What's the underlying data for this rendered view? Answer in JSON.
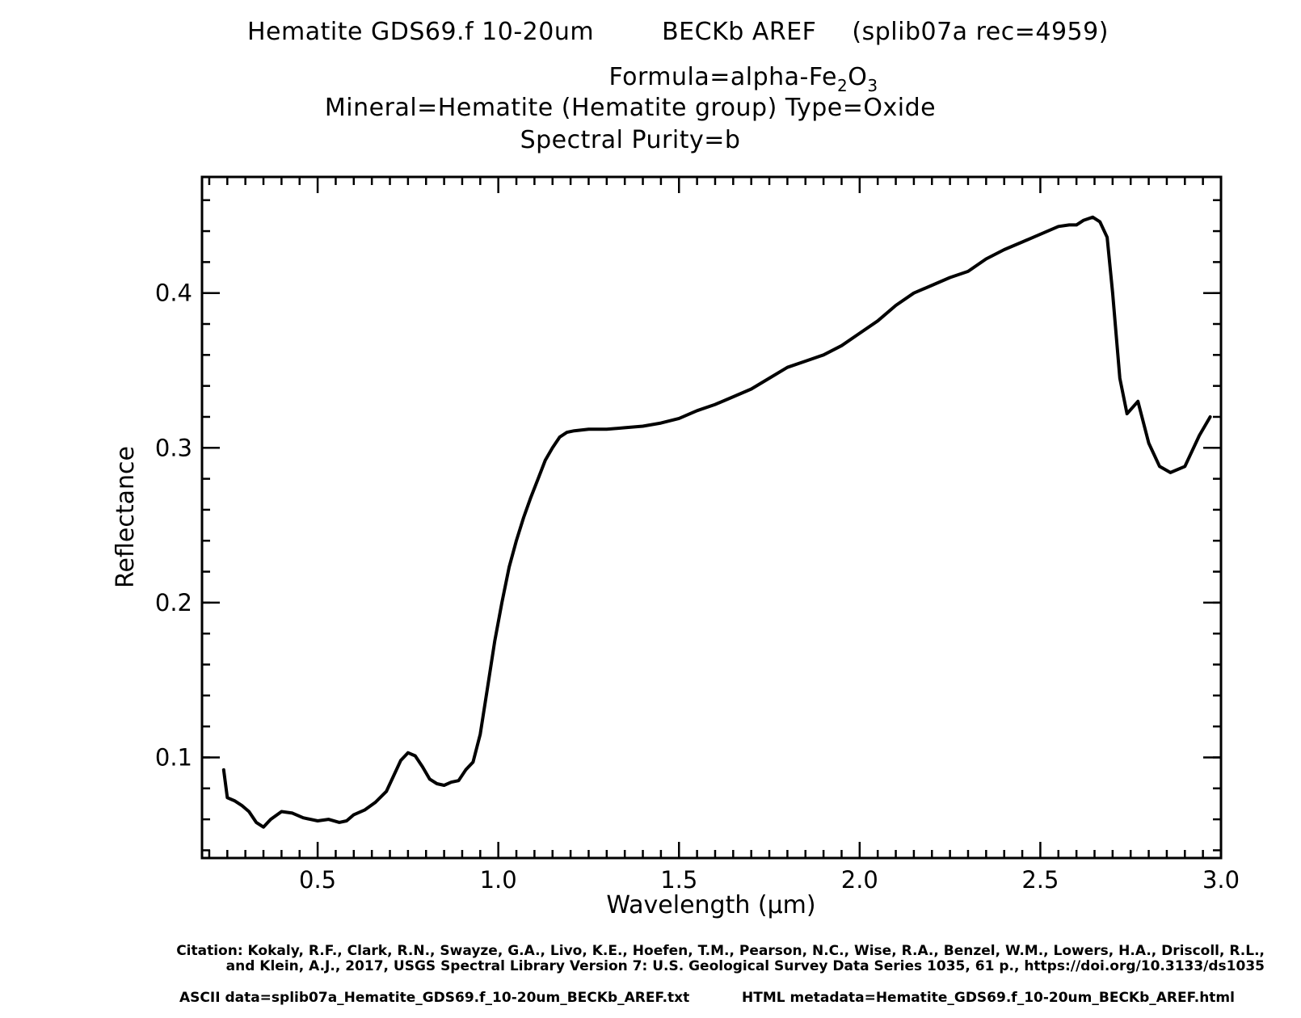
{
  "header": {
    "name": "Hematite GDS69.f 10-20um",
    "measurement": "BECKb AREF",
    "record": "(splib07a rec=4959)",
    "formula_prefix": "Formula=alpha-Fe",
    "formula_sub1": "2",
    "formula_mid": "O",
    "formula_sub2": "3",
    "mineral": "Mineral=Hematite (Hematite group)  Type=Oxide",
    "purity": "Spectral Purity=b"
  },
  "footer": {
    "citation_line1": "Citation: Kokaly, R.F., Clark, R.N., Swayze, G.A., Livo, K.E., Hoefen, T.M., Pearson, N.C., Wise, R.A., Benzel, W.M., Lowers, H.A., Driscoll, R.L.,",
    "citation_line2": "and Klein, A.J., 2017, USGS Spectral Library Version 7: U.S. Geological Survey Data Series 1035, 61 p., https://doi.org/10.3133/ds1035",
    "ascii_data": "ASCII data=splib07a_Hematite_GDS69.f_10-20um_BECKb_AREF.txt",
    "html_metadata": "HTML metadata=Hematite_GDS69.f_10-20um_BECKb_AREF.html"
  },
  "chart_data": {
    "type": "line",
    "title": "Hematite GDS69.f 10-20um BECKb AREF (splib07a rec=4959)",
    "xlabel": "Wavelength (μm)",
    "ylabel": "Reflectance",
    "xlim": [
      0.18,
      3.0
    ],
    "ylim": [
      0.035,
      0.475
    ],
    "xticks": [
      0.5,
      1.0,
      1.5,
      2.0,
      2.5,
      3.0
    ],
    "xtick_labels": [
      "0.5",
      "1.0",
      "1.5",
      "2.0",
      "2.5",
      "3.0"
    ],
    "yticks": [
      0.1,
      0.2,
      0.3,
      0.4
    ],
    "ytick_labels": [
      "0.1",
      "0.2",
      "0.3",
      "0.4"
    ],
    "grid": false,
    "line_color": "#000000",
    "series": [
      {
        "x": [
          0.24,
          0.25,
          0.27,
          0.29,
          0.31,
          0.33,
          0.35,
          0.37,
          0.4,
          0.43,
          0.46,
          0.5,
          0.53,
          0.56,
          0.58,
          0.6,
          0.63,
          0.66,
          0.69,
          0.71,
          0.73,
          0.75,
          0.77,
          0.79,
          0.81,
          0.83,
          0.85,
          0.87,
          0.89,
          0.91,
          0.93,
          0.95,
          0.97,
          0.99,
          1.01,
          1.03,
          1.05,
          1.07,
          1.09,
          1.11,
          1.13,
          1.15,
          1.17,
          1.19,
          1.21,
          1.25,
          1.3,
          1.35,
          1.4,
          1.45,
          1.5,
          1.55,
          1.6,
          1.65,
          1.7,
          1.75,
          1.8,
          1.85,
          1.9,
          1.95,
          2.0,
          2.05,
          2.1,
          2.15,
          2.2,
          2.25,
          2.3,
          2.35,
          2.4,
          2.45,
          2.5,
          2.55,
          2.58,
          2.6,
          2.62,
          2.645,
          2.665,
          2.685,
          2.7,
          2.72,
          2.74,
          2.77,
          2.8,
          2.83,
          2.86,
          2.9,
          2.94,
          2.97
        ],
        "y": [
          0.092,
          0.074,
          0.072,
          0.069,
          0.065,
          0.058,
          0.055,
          0.06,
          0.065,
          0.064,
          0.061,
          0.059,
          0.06,
          0.058,
          0.059,
          0.063,
          0.066,
          0.071,
          0.078,
          0.088,
          0.098,
          0.103,
          0.101,
          0.094,
          0.086,
          0.083,
          0.082,
          0.084,
          0.085,
          0.092,
          0.097,
          0.115,
          0.145,
          0.175,
          0.2,
          0.223,
          0.24,
          0.255,
          0.268,
          0.28,
          0.292,
          0.3,
          0.307,
          0.31,
          0.311,
          0.312,
          0.312,
          0.313,
          0.314,
          0.316,
          0.319,
          0.324,
          0.328,
          0.333,
          0.338,
          0.345,
          0.352,
          0.356,
          0.36,
          0.366,
          0.374,
          0.382,
          0.392,
          0.4,
          0.405,
          0.41,
          0.414,
          0.422,
          0.428,
          0.433,
          0.438,
          0.443,
          0.444,
          0.444,
          0.447,
          0.449,
          0.446,
          0.436,
          0.4,
          0.345,
          0.322,
          0.33,
          0.303,
          0.288,
          0.284,
          0.288,
          0.308,
          0.32
        ]
      }
    ]
  }
}
